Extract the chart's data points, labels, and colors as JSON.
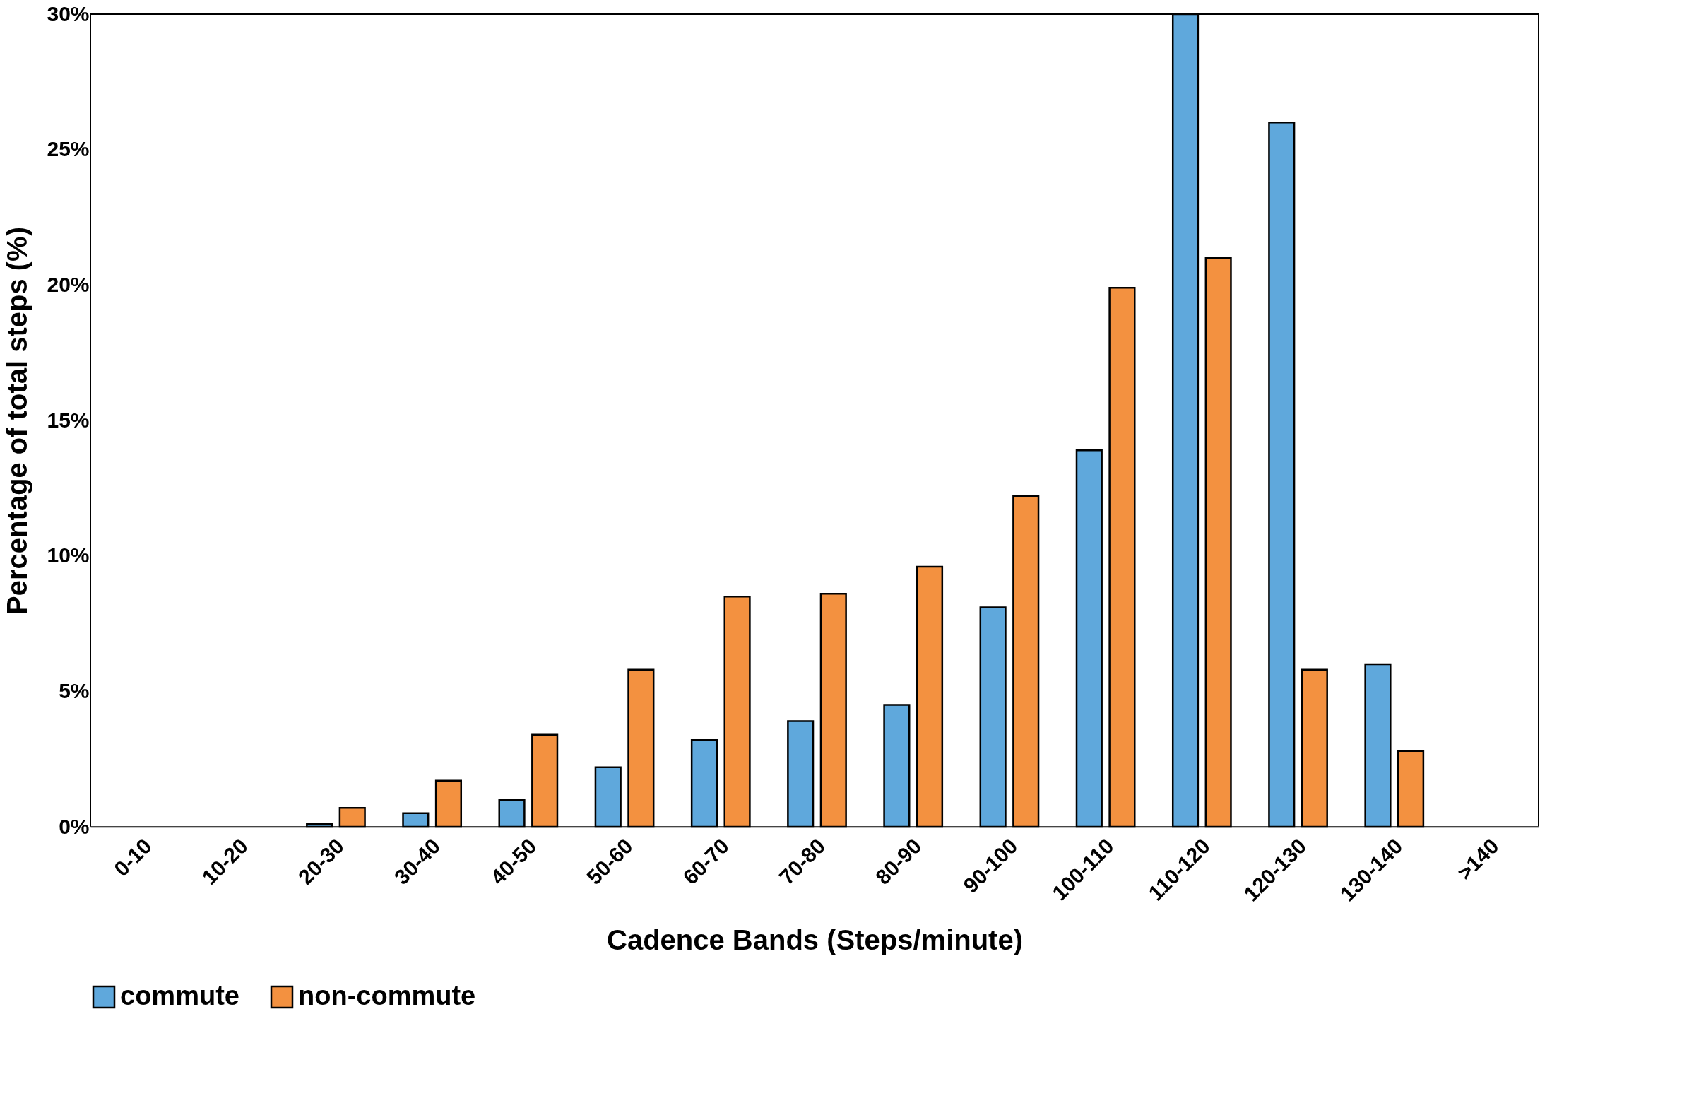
{
  "chart_data": {
    "type": "bar",
    "categories": [
      "0-10",
      "10-20",
      "20-30",
      "30-40",
      "40-50",
      "50-60",
      "60-70",
      "70-80",
      "80-90",
      "90-100",
      "100-110",
      "110-120",
      "120-130",
      "130-140",
      ">140"
    ],
    "series": [
      {
        "name": "commute",
        "color": "#5fa8dc",
        "values": [
          null,
          null,
          0.1,
          0.5,
          1.0,
          2.2,
          3.2,
          3.9,
          4.5,
          8.1,
          13.9,
          30,
          26.0,
          6.0,
          null
        ]
      },
      {
        "name": "non-commute",
        "color": "#f39140",
        "values": [
          null,
          null,
          0.7,
          1.7,
          3.4,
          5.8,
          8.5,
          8.6,
          9.6,
          12.2,
          19.9,
          21.0,
          5.8,
          2.8,
          null
        ]
      }
    ],
    "xlabel": "Cadence Bands (Steps/minute)",
    "ylabel": "Percentage of total steps (%)",
    "ylim": [
      0,
      30
    ],
    "yticks": [
      {
        "value": 0,
        "label": "0%"
      },
      {
        "value": 5,
        "label": "5%"
      },
      {
        "value": 10,
        "label": "10%"
      },
      {
        "value": 15,
        "label": "15%"
      },
      {
        "value": 20,
        "label": "20%"
      },
      {
        "value": 25,
        "label": "25%"
      },
      {
        "value": 30,
        "label": "30%"
      }
    ],
    "grid": false,
    "legend": "bottom"
  }
}
